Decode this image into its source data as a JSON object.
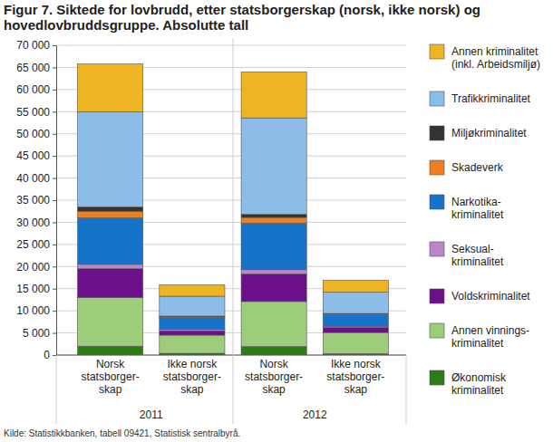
{
  "chart_data": {
    "type": "bar",
    "title": "Figur 7. Siktede for lovbrudd, etter statsborgerskap (norsk, ikke norsk) og\nhovedlovbruddsgruppe. Absolutte tall",
    "source": "Kilde: Statistikkbanken, tabell 09421, Statistisk sentralbyrå.",
    "categories": [
      "Norsk\nstatsborger-\nskap",
      "Ikke norsk\nstatsborger-\nskap",
      "Norsk\nstatsborger-\nskap",
      "Ikke norsk\nstatsborger-\nskap"
    ],
    "group_labels": [
      "2011",
      "2012"
    ],
    "stacked": true,
    "grid": true,
    "legend": "right",
    "ylim": [
      0,
      70000
    ],
    "yticks": [
      0,
      {
        "value": 5000,
        "label": "5 000"
      },
      {
        "value": 10000,
        "label": "10 000"
      },
      {
        "value": 15000,
        "label": "15 000"
      },
      {
        "value": 20000,
        "label": "20 000"
      },
      {
        "value": 25000,
        "label": "25 000"
      },
      {
        "value": 30000,
        "label": "30 000"
      },
      {
        "value": 35000,
        "label": "35 000"
      },
      {
        "value": 40000,
        "label": "40 000"
      },
      {
        "value": 45000,
        "label": "45 000"
      },
      {
        "value": 50000,
        "label": "50 000"
      },
      {
        "value": 55000,
        "label": "55 000"
      },
      {
        "value": 60000,
        "label": "60 000"
      },
      {
        "value": 65000,
        "label": "65 000"
      },
      {
        "value": 70000,
        "label": "70 000"
      }
    ],
    "series": [
      {
        "name": "Økonomisk\nkriminalitet",
        "color": "#2e7d14",
        "values": [
          2000,
          400,
          1900,
          300
        ]
      },
      {
        "name": "Annen vinnings-\nkriminalitet",
        "color": "#9dcc7b",
        "values": [
          11000,
          4100,
          10200,
          4800
        ]
      },
      {
        "name": "Voldskriminalitet",
        "color": "#6b0f8a",
        "values": [
          6500,
          1000,
          6200,
          1100
        ]
      },
      {
        "name": "Seksual-\nkriminalitet",
        "color": "#b986c7",
        "values": [
          1000,
          300,
          1000,
          300
        ]
      },
      {
        "name": "Narkotika-\nkriminalitet",
        "color": "#1574c9",
        "values": [
          10500,
          2700,
          10500,
          2600
        ]
      },
      {
        "name": "Skadeverk",
        "color": "#f07f22",
        "values": [
          1500,
          200,
          1300,
          200
        ]
      },
      {
        "name": "Miljøkriminalitet",
        "color": "#333333",
        "values": [
          1000,
          100,
          700,
          100
        ]
      },
      {
        "name": "Trafikkriminalitet",
        "color": "#8bbde8",
        "values": [
          21500,
          4500,
          21800,
          4800
        ]
      },
      {
        "name": "Annen kriminalitet\n(inkl. Arbeidsmiljø)",
        "color": "#eeb422",
        "values": [
          10800,
          2600,
          10400,
          2700
        ]
      }
    ]
  }
}
